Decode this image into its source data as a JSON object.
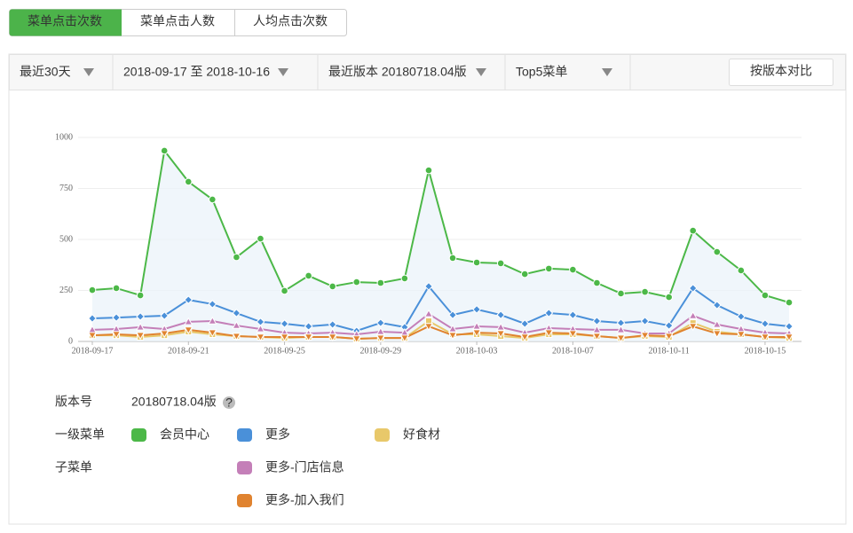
{
  "tabs": [
    "菜单点击次数",
    "菜单点击人数",
    "人均点击次数"
  ],
  "filters": [
    "最近30天",
    "2018-09-17 至 2018-10-16",
    "最近版本 20180718.04版",
    "Top5菜单"
  ],
  "compare_button": "按版本对比",
  "version": {
    "label": "版本号",
    "value": "20180718.04版",
    "help": "?"
  },
  "legend_labels": [
    "一级菜单",
    "子菜单"
  ],
  "chart_data": {
    "type": "line",
    "categories": [
      "2018-09-17",
      null,
      null,
      null,
      "2018-09-21",
      null,
      null,
      null,
      "2018-09-25",
      null,
      null,
      null,
      "2018-09-29",
      null,
      null,
      null,
      "2018-10-03",
      null,
      null,
      null,
      "2018-10-07",
      null,
      null,
      null,
      "2018-10-11",
      null,
      null,
      null,
      "2018-10-15",
      null
    ],
    "ylim": [
      0,
      1000
    ],
    "yticks": [
      0,
      250,
      500,
      750,
      1000
    ],
    "grid": true,
    "series": [
      {
        "name": "会员中心",
        "color": "#4cb848",
        "marker": "circle",
        "area": true,
        "values": [
          252,
          261,
          226,
          935,
          783,
          696,
          413,
          504,
          248,
          322,
          270,
          291,
          287,
          309,
          839,
          409,
          387,
          383,
          330,
          357,
          352,
          287,
          235,
          243,
          217,
          543,
          439,
          348,
          226,
          191
        ]
      },
      {
        "name": "更多",
        "color": "#4a90d9",
        "marker": "diamond",
        "values": [
          113,
          117,
          122,
          126,
          204,
          183,
          139,
          96,
          87,
          74,
          83,
          52,
          91,
          70,
          270,
          130,
          157,
          130,
          87,
          139,
          130,
          100,
          91,
          100,
          78,
          261,
          178,
          122,
          87,
          74
        ]
      },
      {
        "name": "好食材",
        "color": "#e8c86a",
        "marker": "square",
        "values": [
          30,
          30,
          22,
          30,
          48,
          35,
          26,
          22,
          17,
          22,
          22,
          13,
          17,
          17,
          100,
          35,
          35,
          26,
          17,
          35,
          35,
          26,
          17,
          26,
          22,
          91,
          48,
          35,
          22,
          17
        ]
      },
      {
        "name": "更多-门店信息",
        "color": "#c47fb8",
        "marker": "triangle",
        "values": [
          57,
          61,
          70,
          61,
          96,
          100,
          78,
          61,
          43,
          39,
          43,
          35,
          48,
          43,
          135,
          61,
          74,
          70,
          43,
          65,
          61,
          57,
          57,
          39,
          39,
          126,
          83,
          61,
          43,
          39
        ]
      },
      {
        "name": "更多-加入我们",
        "color": "#e0832f",
        "marker": "triangle-down",
        "values": [
          30,
          35,
          30,
          39,
          57,
          43,
          26,
          22,
          22,
          22,
          22,
          13,
          17,
          17,
          74,
          30,
          43,
          39,
          22,
          43,
          39,
          26,
          17,
          30,
          26,
          74,
          39,
          35,
          22,
          22
        ]
      }
    ]
  }
}
